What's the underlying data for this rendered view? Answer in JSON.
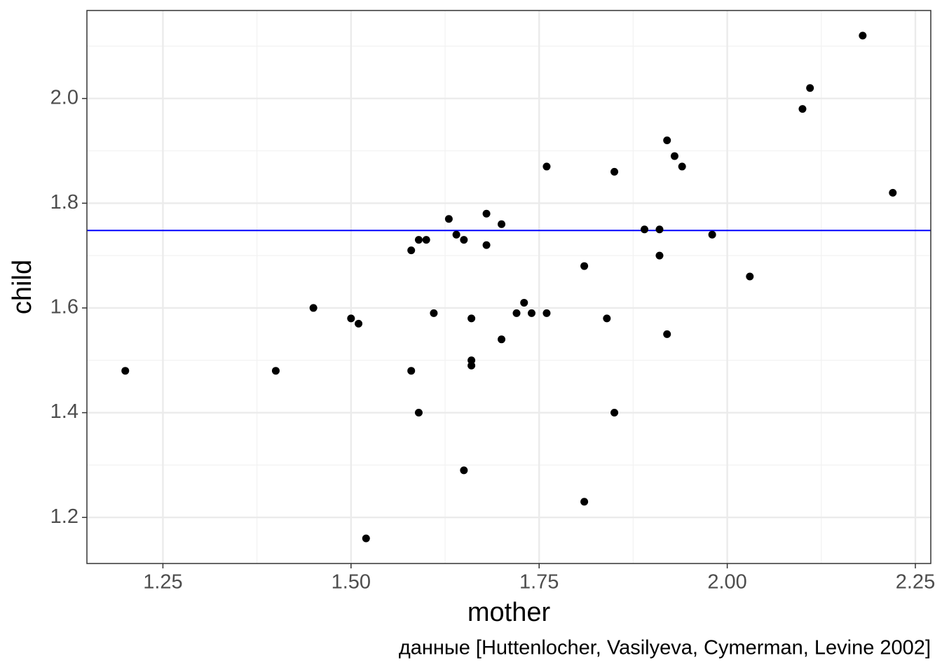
{
  "chart_data": {
    "type": "scatter",
    "x_label": "mother",
    "y_label": "child",
    "caption": "данные [Huttenlocher, Vasilyeva, Cymerman, Levine 2002]",
    "x": [
      1.2,
      1.4,
      1.45,
      1.5,
      1.51,
      1.52,
      1.58,
      1.58,
      1.59,
      1.59,
      1.6,
      1.61,
      1.63,
      1.64,
      1.65,
      1.65,
      1.66,
      1.66,
      1.66,
      1.68,
      1.68,
      1.7,
      1.7,
      1.72,
      1.73,
      1.74,
      1.76,
      1.76,
      1.81,
      1.81,
      1.84,
      1.85,
      1.85,
      1.89,
      1.91,
      1.91,
      1.92,
      1.92,
      1.93,
      1.94,
      1.98,
      2.03,
      2.1,
      2.11,
      2.18,
      2.22
    ],
    "values": [
      1.48,
      1.48,
      1.6,
      1.58,
      1.57,
      1.16,
      1.71,
      1.48,
      1.73,
      1.4,
      1.73,
      1.59,
      1.77,
      1.74,
      1.73,
      1.29,
      1.58,
      1.5,
      1.49,
      1.78,
      1.72,
      1.76,
      1.54,
      1.59,
      1.61,
      1.59,
      1.87,
      1.59,
      1.68,
      1.23,
      1.58,
      1.86,
      1.4,
      1.75,
      1.75,
      1.7,
      1.92,
      1.55,
      1.89,
      1.87,
      1.74,
      1.66,
      1.98,
      2.02,
      2.12,
      1.82
    ],
    "color": "#000000",
    "xlim": [
      1.149,
      2.2705
    ],
    "ylim": [
      1.112,
      2.168
    ],
    "xticks": [
      {
        "value": 1.25,
        "label": "1.25"
      },
      {
        "value": 1.5,
        "label": "1.50"
      },
      {
        "value": 1.75,
        "label": "1.75"
      },
      {
        "value": 2,
        "label": "2.00"
      },
      {
        "value": 2.25,
        "label": "2.25"
      }
    ],
    "yticks": [
      {
        "value": 1.2,
        "label": "1.2"
      },
      {
        "value": 1.4,
        "label": "1.4"
      },
      {
        "value": 1.6,
        "label": "1.6"
      },
      {
        "value": 1.8,
        "label": "1.8"
      },
      {
        "value": 2,
        "label": "2.0"
      }
    ],
    "x_minor_ticks": [
      1.375,
      1.625,
      1.875,
      2.125
    ],
    "y_minor_ticks": [
      1.3,
      1.5,
      1.7,
      1.9,
      2.1
    ],
    "hline": 1.748,
    "hline_color": "#0000ff",
    "grid": true
  }
}
